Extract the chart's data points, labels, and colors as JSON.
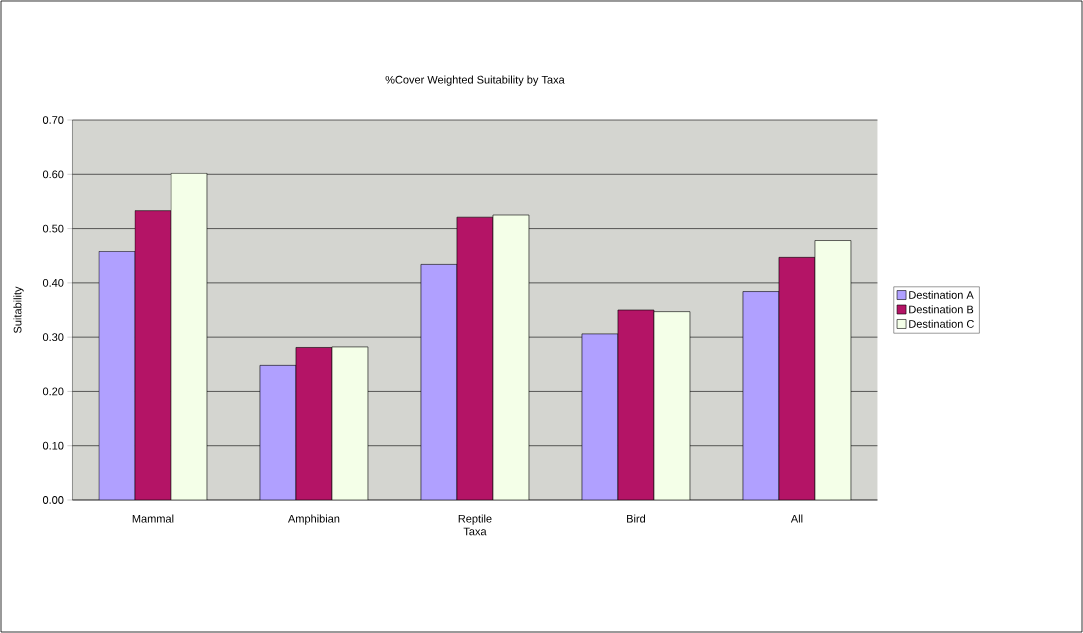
{
  "chart_data": {
    "type": "bar",
    "title": "%Cover Weighted Suitability by Taxa",
    "xlabel": "Taxa",
    "ylabel": "Suitability",
    "categories": [
      "Mammal",
      "Amphibian",
      "Reptile",
      "Bird",
      "All"
    ],
    "series": [
      {
        "name": "Destination A",
        "color": "#b0a0ff",
        "values": [
          0.458,
          0.248,
          0.434,
          0.306,
          0.384
        ]
      },
      {
        "name": "Destination B",
        "color": "#b41466",
        "values": [
          0.533,
          0.281,
          0.521,
          0.35,
          0.447
        ]
      },
      {
        "name": "Destination C",
        "color": "#f4ffe8",
        "values": [
          0.602,
          0.282,
          0.525,
          0.347,
          0.478
        ]
      }
    ],
    "ylim": [
      0,
      0.7
    ],
    "yticks": [
      {
        "value": 0,
        "label": "0.00"
      },
      {
        "value": 0.1,
        "label": "0.10"
      },
      {
        "value": 0.2,
        "label": "0.20"
      },
      {
        "value": 0.3,
        "label": "0.30"
      },
      {
        "value": 0.4,
        "label": "0.40"
      },
      {
        "value": 0.5,
        "label": "0.50"
      },
      {
        "value": 0.6,
        "label": "0.60"
      },
      {
        "value": 0.7,
        "label": "0.70"
      }
    ],
    "grid": "y",
    "legend": "right"
  }
}
